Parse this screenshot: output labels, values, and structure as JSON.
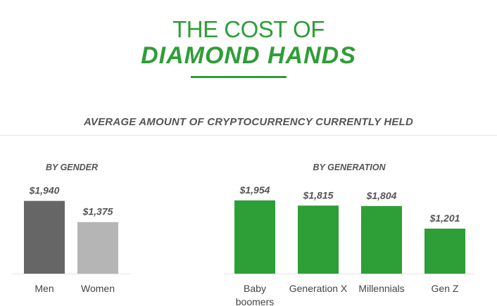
{
  "header": {
    "title_line1": "THE COST OF",
    "title_line2": "DIAMOND HANDS",
    "subtitle": "AVERAGE AMOUNT OF CRYPTOCURRENCY CURRENTLY HELD"
  },
  "colors": {
    "accent": "#2e9e37",
    "men": "#666666",
    "women": "#b5b5b5",
    "generation": "#2e9e37"
  },
  "chart_data": [
    {
      "type": "bar",
      "title": "BY GENDER",
      "categories": [
        "Men",
        "Women"
      ],
      "values": [
        1940,
        1375
      ],
      "labels": [
        "$1,940",
        "$1,375"
      ],
      "ylim": [
        0,
        2000
      ]
    },
    {
      "type": "bar",
      "title": "BY GENERATION",
      "categories": [
        "Baby boomers",
        "Generation X",
        "Millennials",
        "Gen Z"
      ],
      "values": [
        1954,
        1815,
        1804,
        1201
      ],
      "labels": [
        "$1,954",
        "$1,815",
        "$1,804",
        "$1,201"
      ],
      "ylim": [
        0,
        2000
      ]
    }
  ]
}
